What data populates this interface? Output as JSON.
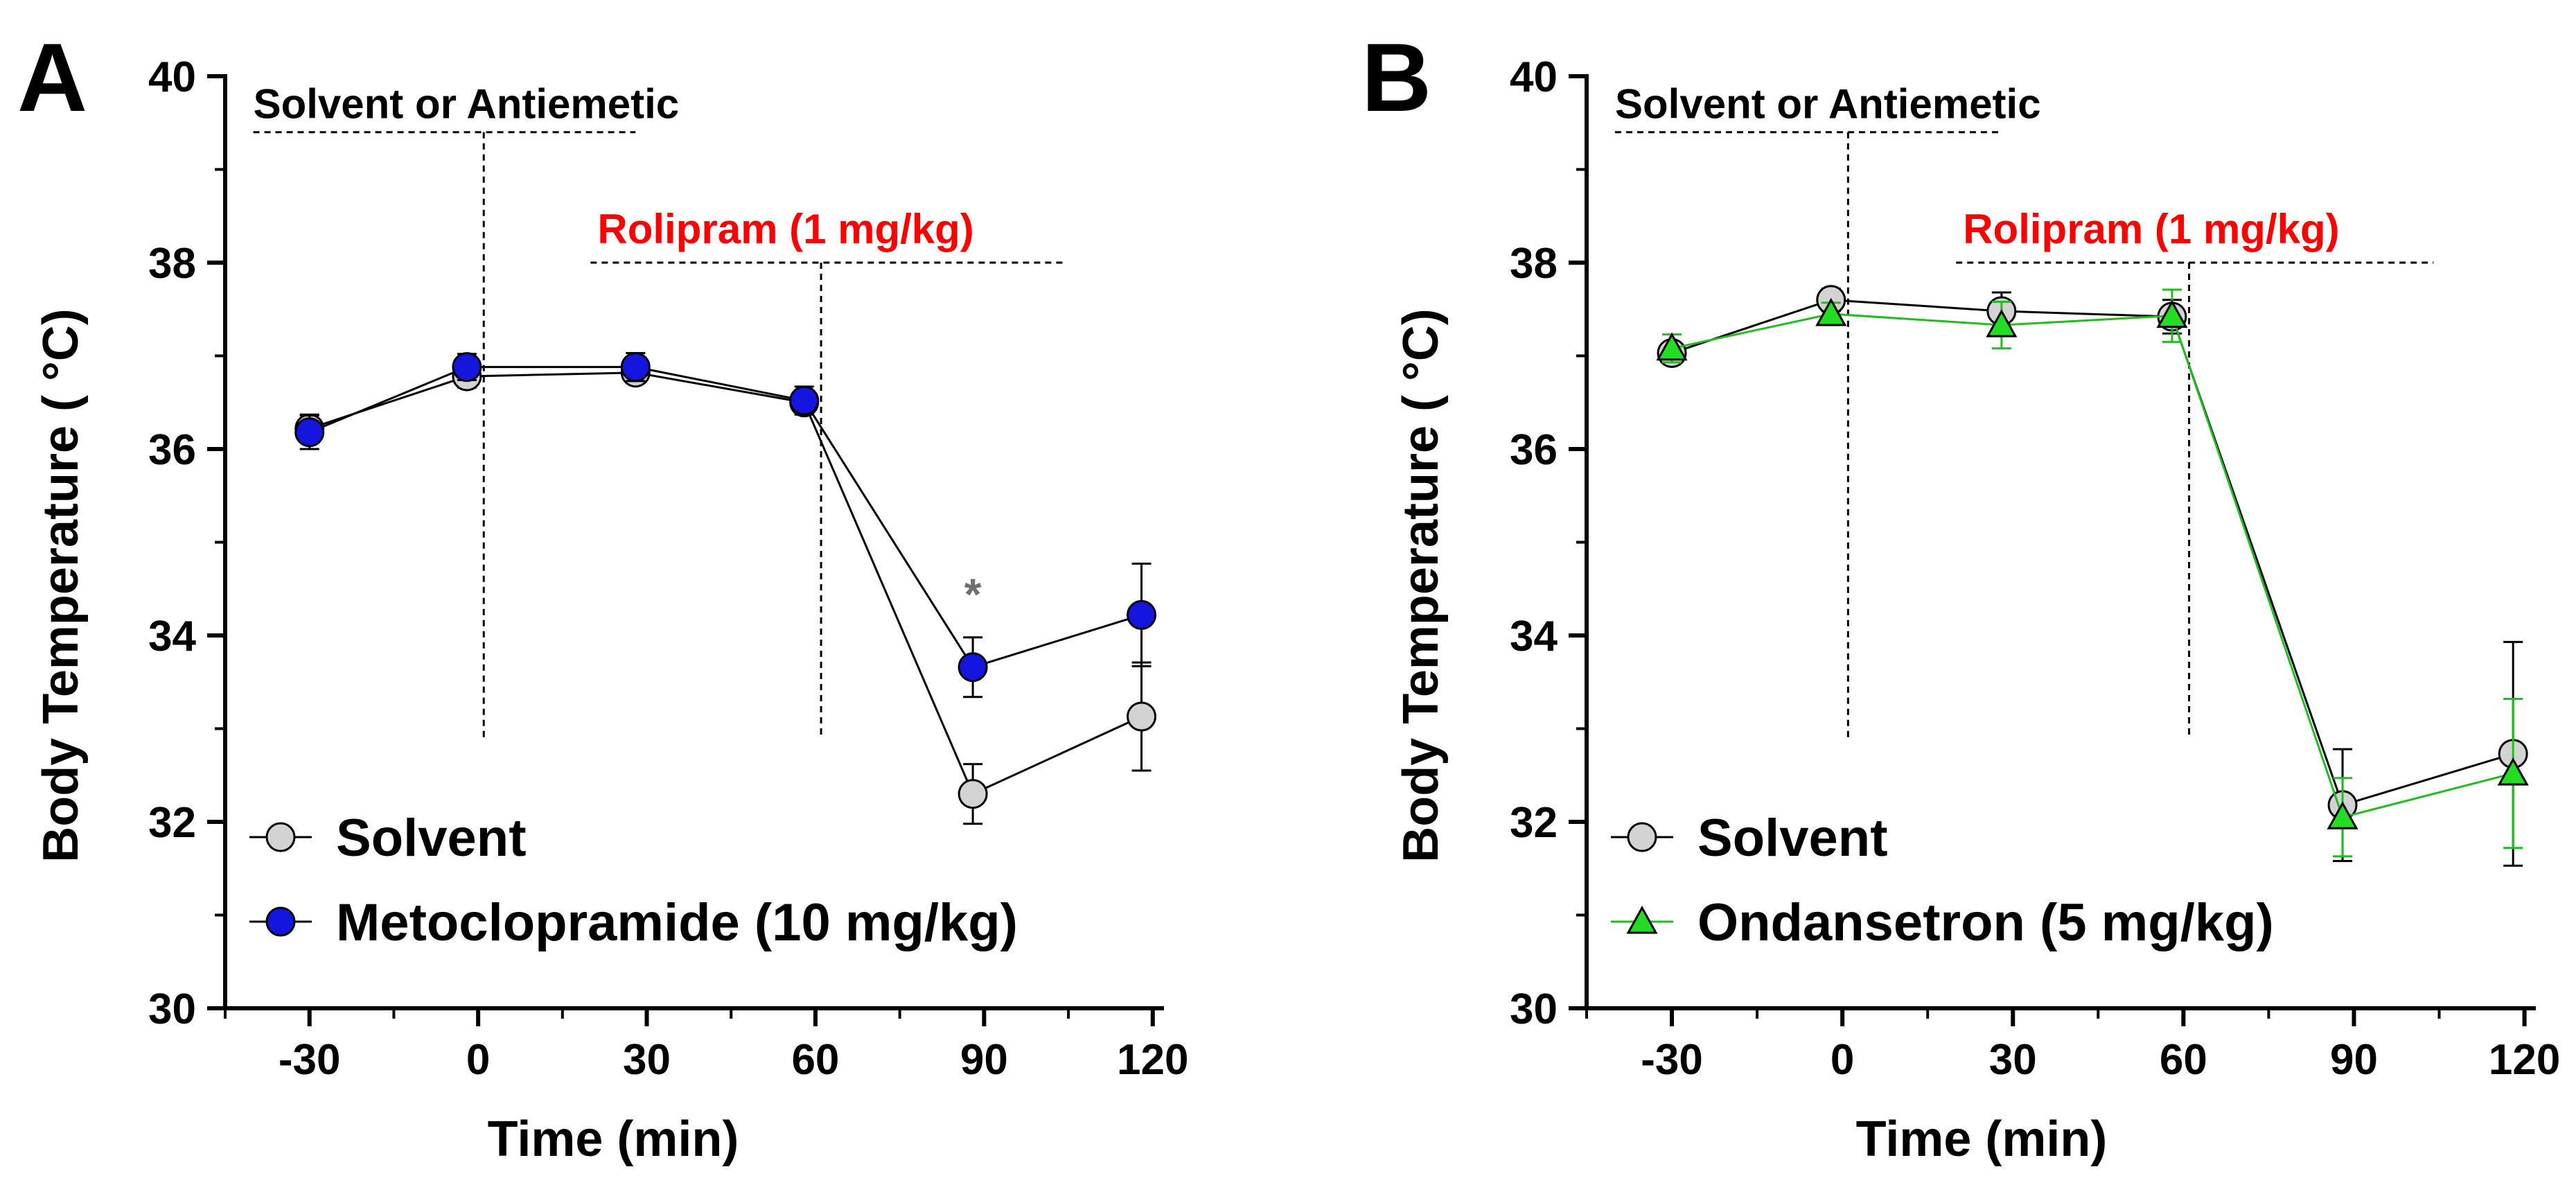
{
  "chart_data": [
    {
      "panel": "A",
      "type": "line",
      "xlabel": "Time (min)",
      "ylabel": "Body Temperature ( °C)",
      "xticks": [
        "-30",
        "0",
        "30",
        "60",
        "90",
        "120"
      ],
      "yticks": [
        "30",
        "32",
        "34",
        "36",
        "38",
        "40"
      ],
      "xlim": [
        -45,
        122
      ],
      "ylim": [
        30,
        40
      ],
      "annotations": {
        "pretreat_label": "Solvent or Antiemetic",
        "drug_label": "Rolipram (1 mg/kg)",
        "drug_color": "#ff0000",
        "pretreat_span": [
          -40,
          28
        ],
        "pretreat_line_x": 1,
        "drug_span": [
          20,
          104
        ],
        "drug_line_x": 61,
        "significance_marker": "*",
        "significance_x": 88
      },
      "series": [
        {
          "name": "Solvent",
          "marker": "circle",
          "fill": "#d3d3d3",
          "line": "#000000",
          "x": [
            -30,
            -2,
            28,
            58,
            88,
            118
          ],
          "y": [
            36.22,
            36.78,
            36.82,
            36.5,
            32.3,
            33.13
          ],
          "err": [
            0.15,
            0.12,
            0.1,
            0.12,
            0.32,
            0.58
          ]
        },
        {
          "name": "Metoclopramide (10 mg/kg)",
          "marker": "circle",
          "fill": "#1515e0",
          "line": "#000000",
          "x": [
            -30,
            -2,
            28,
            58,
            88,
            118
          ],
          "y": [
            36.18,
            36.88,
            36.88,
            36.52,
            33.66,
            34.22
          ],
          "err": [
            0.18,
            0.14,
            0.15,
            0.15,
            0.32,
            0.55
          ]
        }
      ]
    },
    {
      "panel": "B",
      "type": "line",
      "xlabel": "Time (min)",
      "ylabel": "Body Temperature ( °C)",
      "xticks": [
        "-30",
        "0",
        "30",
        "60",
        "90",
        "120"
      ],
      "yticks": [
        "30",
        "32",
        "34",
        "36",
        "38",
        "40"
      ],
      "xlim": [
        -45,
        122
      ],
      "ylim": [
        30,
        40
      ],
      "annotations": {
        "pretreat_label": "Solvent or Antiemetic",
        "drug_label": "Rolipram (1 mg/kg)",
        "drug_color": "#ff0000",
        "pretreat_span": [
          -40,
          28
        ],
        "pretreat_line_x": 1,
        "drug_span": [
          20,
          104
        ],
        "drug_line_x": 61
      },
      "series": [
        {
          "name": "Solvent",
          "marker": "circle",
          "fill": "#d3d3d3",
          "line": "#000000",
          "x": [
            -30,
            -2,
            28,
            58,
            88,
            118
          ],
          "y": [
            37.03,
            37.6,
            37.48,
            37.42,
            32.18,
            32.73
          ],
          "err": [
            0.1,
            0.12,
            0.2,
            0.18,
            0.6,
            1.2
          ]
        },
        {
          "name": "Ondansetron (5 mg/kg)",
          "marker": "triangle",
          "fill": "#22dd22",
          "line": "#22bb22",
          "x": [
            -30,
            -2,
            28,
            58,
            88,
            118
          ],
          "y": [
            37.08,
            37.45,
            37.33,
            37.43,
            32.05,
            32.52
          ],
          "err": [
            0.15,
            0.12,
            0.25,
            0.28,
            0.42,
            0.8
          ]
        }
      ]
    }
  ]
}
